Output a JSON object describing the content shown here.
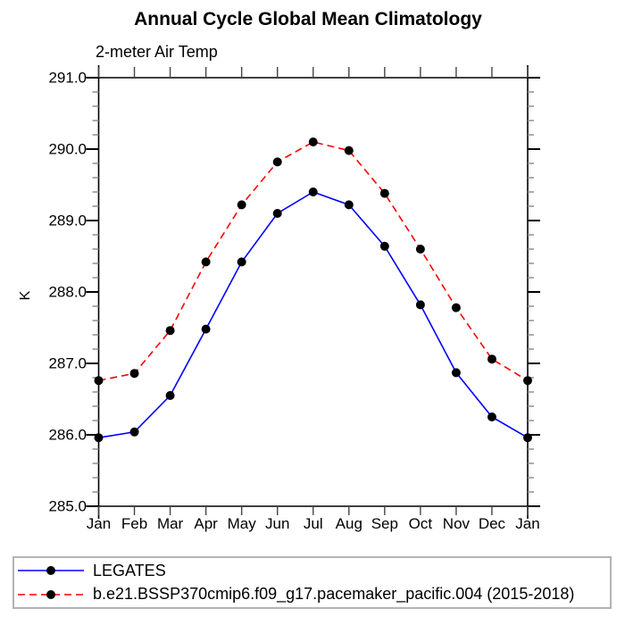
{
  "title": "Annual Cycle Global Mean Climatology",
  "subtitle": "2-meter Air Temp",
  "chart_data": {
    "type": "line",
    "categories": [
      "Jan",
      "Feb",
      "Mar",
      "Apr",
      "May",
      "Jun",
      "Jul",
      "Aug",
      "Sep",
      "Oct",
      "Nov",
      "Dec",
      "Jan"
    ],
    "series": [
      {
        "name": "LEGATES",
        "color": "#0000ff",
        "line_style": "solid",
        "marker": "filled-circle",
        "marker_color": "#000000",
        "values": [
          285.96,
          286.04,
          286.55,
          287.48,
          288.42,
          289.1,
          289.4,
          289.22,
          288.64,
          287.82,
          286.87,
          286.25,
          285.96
        ]
      },
      {
        "name": "b.e21.BSSP370cmip6.f09_g17.pacemaker_pacific.004 (2015-2018)",
        "color": "#ff0000",
        "line_style": "dashed",
        "marker": "filled-circle",
        "marker_color": "#000000",
        "values": [
          286.76,
          286.86,
          287.46,
          288.42,
          289.22,
          289.82,
          290.1,
          289.98,
          289.38,
          288.6,
          287.78,
          287.06,
          286.76
        ]
      }
    ],
    "xlabel": "",
    "ylabel": "K",
    "ylim": [
      285.0,
      291.0
    ],
    "ytick_major_step": 1.0,
    "ytick_minor_step": 0.2,
    "ytick_labels": [
      "285.0",
      "286.0",
      "287.0",
      "288.0",
      "289.0",
      "290.0",
      "291.0"
    ],
    "grid": false,
    "legend_position": "bottom-box",
    "axis_color": "#000000",
    "minor_tick_color": "#888888"
  }
}
